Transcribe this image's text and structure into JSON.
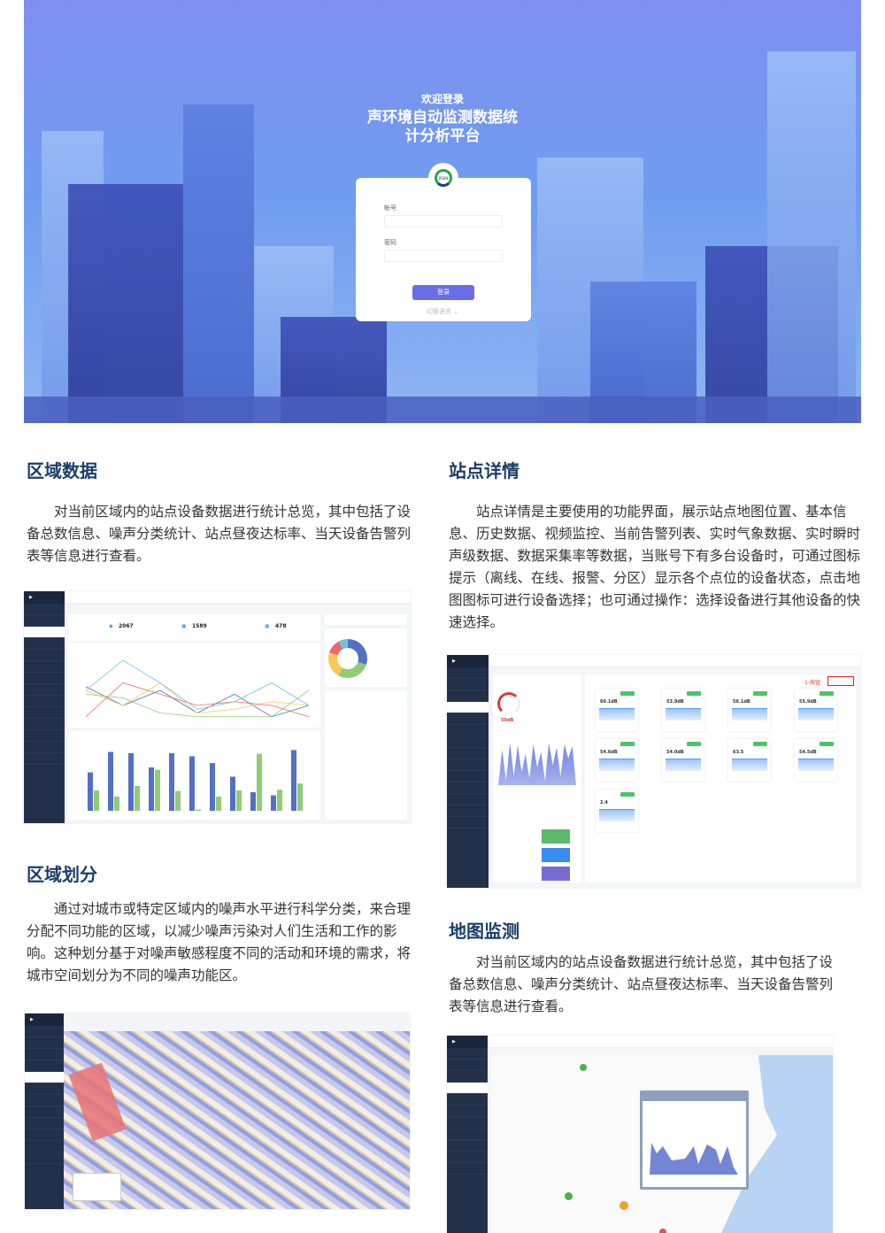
{
  "hero": {
    "welcome": "欢迎登录",
    "title_line1": "声环境自动监测数据统",
    "title_line2": "计分析平台",
    "logo_text": "JISEN",
    "account_label": "帐号",
    "password_label": "密码",
    "login_button": "登录",
    "switch_language": "切换语言"
  },
  "sections": [
    {
      "title": "区域数据",
      "text": "对当前区域内的站点设备数据进行统计总览，其中包括了设备总数信息、噪声分类统计、站点昼夜达标率、当天设备告警列表等信息进行查看。"
    },
    {
      "title": "站点详情",
      "text": "站点详情是主要使用的功能界面，展示站点地图位置、基本信息、历史数据、视频监控、当前告警列表、实时气象数据、实时瞬时声级数据、数据采集率等数据，当账号下有多台设备时，可通过图标提示（离线、在线、报警、分区）显示各个点位的设备状态，点击地图图标可进行设备选择；也可通过操作：选择设备进行其他设备的快速选择。"
    },
    {
      "title": "区域划分",
      "text": "通过对城市或特定区域内的噪声水平进行科学分类，来合理分配不同功能的区域，以减少噪声污染对人们生活和工作的影响。这种划分基于对噪声敏感程度不同的活动和环境的需求，将城市空间划分为不同的噪声功能区。"
    },
    {
      "title": "地图监测",
      "text": "对当前区域内的站点设备数据进行统计总览，其中包括了设备总数信息、噪声分类统计、站点昼夜达标率、当天设备告警列表等信息进行查看。"
    }
  ],
  "dashboard": {
    "stats": [
      "2067",
      "1589",
      "478"
    ],
    "series_colors": [
      "#5470c6",
      "#91cc75",
      "#fac858",
      "#ee6666",
      "#73c0de"
    ],
    "bars_blue": [
      62,
      95,
      93,
      70,
      93,
      88,
      77,
      55,
      30,
      25,
      98
    ],
    "bars_green": [
      33,
      23,
      40,
      66,
      32,
      2,
      23,
      33,
      92,
      34,
      44
    ]
  },
  "station": {
    "gauge": "50dB",
    "annotation": "1-按钮",
    "tiles": [
      "60.1dB",
      "53.9dB",
      "56.1dB",
      "55.9dB",
      "54.6dB",
      "54.0dB",
      "63.5",
      "54.5dB",
      "2.4"
    ]
  }
}
